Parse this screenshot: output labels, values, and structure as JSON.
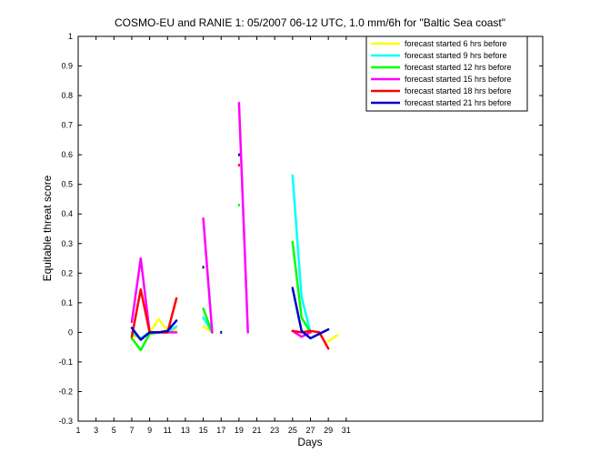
{
  "chart_data": {
    "type": "line",
    "title": "COSMO-EU and RANIE 1: 05/2007 06-12 UTC, 1.0 mm/6h for \"Baltic Sea coast\"",
    "xlabel": "Days",
    "ylabel": "Equitable threat score",
    "xlim": [
      1,
      53
    ],
    "ylim": [
      -0.3,
      1
    ],
    "xticks": [
      1,
      3,
      5,
      7,
      9,
      11,
      13,
      15,
      17,
      19,
      21,
      23,
      25,
      27,
      29,
      31
    ],
    "yticks": [
      -0.3,
      -0.2,
      -0.1,
      0,
      0.1,
      0.2,
      0.3,
      0.4,
      0.5,
      0.6,
      0.7,
      0.8,
      0.9,
      1
    ],
    "grid": false,
    "legend_position": "top-right",
    "series": [
      {
        "name": "forecast started  6 hrs before",
        "color": "#ffff00",
        "segments": [
          [
            [
              7,
              -0.01
            ],
            [
              8,
              -0.02
            ],
            [
              9,
              0.0
            ],
            [
              10,
              0.045
            ],
            [
              11,
              0.005
            ],
            [
              12,
              0.01
            ]
          ],
          [
            [
              15,
              0.02
            ],
            [
              16,
              0.0
            ]
          ],
          [
            [
              29,
              -0.03
            ],
            [
              30,
              -0.01
            ]
          ]
        ]
      },
      {
        "name": "forecast started  9 hrs before",
        "color": "#00ffff",
        "segments": [
          [
            [
              7,
              0.0
            ],
            [
              8,
              -0.02
            ],
            [
              9,
              0.0
            ],
            [
              10,
              0.0
            ],
            [
              11,
              0.0
            ],
            [
              12,
              0.02
            ]
          ],
          [
            [
              15,
              0.05
            ],
            [
              16,
              0.0
            ]
          ],
          [
            [
              25,
              0.53
            ],
            [
              26,
              0.12
            ],
            [
              27,
              0.0
            ]
          ]
        ]
      },
      {
        "name": "forecast started 12 hrs before",
        "color": "#00ff00",
        "segments": [
          [
            [
              7,
              -0.02
            ],
            [
              8,
              -0.06
            ],
            [
              9,
              -0.005
            ],
            [
              10,
              0.0
            ],
            [
              11,
              0.0
            ]
          ],
          [
            [
              15,
              0.08
            ],
            [
              16,
              0.0
            ]
          ],
          [
            [
              19,
              0.43
            ]
          ],
          [
            [
              25,
              0.305
            ],
            [
              26,
              0.05
            ],
            [
              27,
              0.0
            ]
          ]
        ]
      },
      {
        "name": "forecast started 15 hrs before",
        "color": "#ff00ff",
        "segments": [
          [
            [
              7,
              0.035
            ],
            [
              8,
              0.25
            ],
            [
              9,
              0.0
            ],
            [
              10,
              0.0
            ],
            [
              11,
              0.0
            ],
            [
              12,
              0.0
            ]
          ],
          [
            [
              15,
              0.385
            ],
            [
              16,
              0.0
            ]
          ],
          [
            [
              19,
              0.775
            ],
            [
              20,
              0.0
            ]
          ],
          [
            [
              25,
              0.005
            ],
            [
              26,
              -0.015
            ],
            [
              27,
              0.0
            ]
          ]
        ]
      },
      {
        "name": "forecast started 18 hrs before",
        "color": "#ff0000",
        "segments": [
          [
            [
              7,
              -0.015
            ],
            [
              8,
              0.145
            ],
            [
              9,
              0.0
            ],
            [
              10,
              0.0
            ],
            [
              11,
              0.0
            ],
            [
              12,
              0.115
            ]
          ],
          [
            [
              19,
              0.565
            ]
          ],
          [
            [
              25,
              0.005
            ],
            [
              26,
              0.0
            ],
            [
              27,
              0.005
            ],
            [
              28,
              0.0
            ],
            [
              29,
              -0.055
            ]
          ]
        ]
      },
      {
        "name": "forecast started 21 hrs before",
        "color": "#0000cc",
        "segments": [
          [
            [
              7,
              0.015
            ],
            [
              8,
              -0.025
            ],
            [
              9,
              0.0
            ],
            [
              10,
              0.0
            ],
            [
              11,
              0.005
            ],
            [
              12,
              0.04
            ]
          ],
          [
            [
              15,
              0.22
            ]
          ],
          [
            [
              17,
              0.0
            ]
          ],
          [
            [
              19,
              0.6
            ]
          ],
          [
            [
              25,
              0.15
            ],
            [
              26,
              0.005
            ],
            [
              27,
              -0.02
            ],
            [
              28,
              -0.005
            ],
            [
              29,
              0.01
            ]
          ]
        ]
      }
    ]
  }
}
